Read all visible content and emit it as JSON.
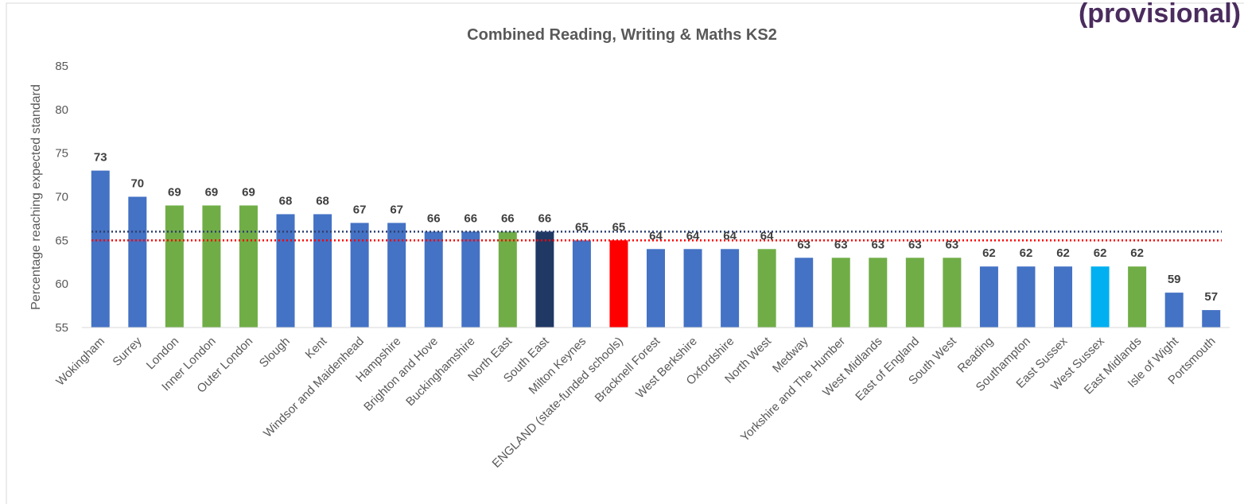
{
  "chart_data": {
    "type": "bar",
    "title": "Combined Reading, Writing & Maths KS2",
    "corner_text": "(provisional)",
    "y_label": "Percentage reaching expected standard",
    "categories": [
      "Wokingham",
      "Surrey",
      "London",
      "Inner London",
      "Outer London",
      "Slough",
      "Kent",
      "Windsor and Maidenhead",
      "Hampshire",
      "Brighton and Hove",
      "Buckinghamshire",
      "North East",
      "South East",
      "Milton Keynes",
      "ENGLAND (state-funded schools)",
      "Bracknell Forest",
      "West Berkshire",
      "Oxfordshire",
      "North West",
      "Medway",
      "Yorkshire and The Humber",
      "West Midlands",
      "East of England",
      "South West",
      "Reading",
      "Southampton",
      "East Sussex",
      "West Sussex",
      "East Midlands",
      "Isle of Wight",
      "Portsmouth"
    ],
    "values": [
      73,
      70,
      69,
      69,
      69,
      68,
      68,
      67,
      67,
      66,
      66,
      66,
      66,
      65,
      65,
      64,
      64,
      64,
      64,
      63,
      63,
      63,
      63,
      63,
      62,
      62,
      62,
      62,
      62,
      59,
      57
    ],
    "colors": [
      "#4472c4",
      "#4472c4",
      "#70ad47",
      "#70ad47",
      "#70ad47",
      "#4472c4",
      "#4472c4",
      "#4472c4",
      "#4472c4",
      "#4472c4",
      "#4472c4",
      "#70ad47",
      "#1f3864",
      "#4472c4",
      "#ff0000",
      "#4472c4",
      "#4472c4",
      "#4472c4",
      "#70ad47",
      "#4472c4",
      "#70ad47",
      "#70ad47",
      "#70ad47",
      "#70ad47",
      "#4472c4",
      "#4472c4",
      "#4472c4",
      "#00b0f0",
      "#70ad47",
      "#4472c4",
      "#4472c4"
    ],
    "reference_lines": [
      {
        "value": 66,
        "color": "#2f3f6f"
      },
      {
        "value": 65,
        "color": "#ff0000"
      }
    ],
    "ylim": [
      55,
      85
    ],
    "yticks": [
      55,
      60,
      65,
      70,
      75,
      80,
      85
    ],
    "grid": false
  }
}
